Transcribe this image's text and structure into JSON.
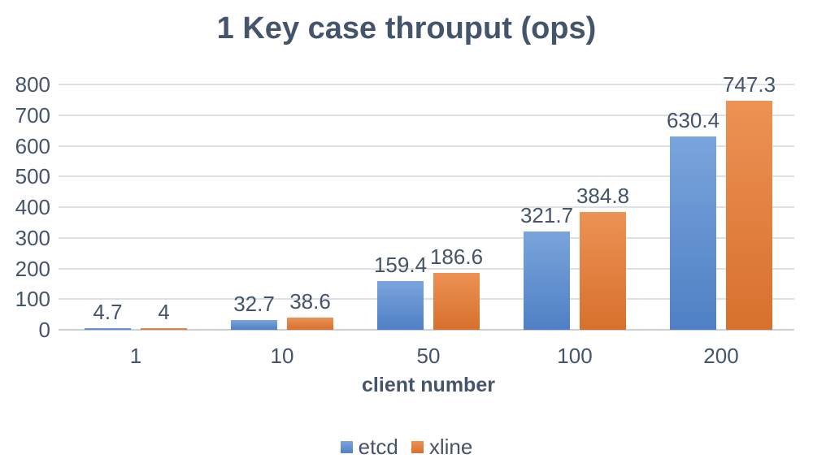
{
  "chart_data": {
    "type": "bar",
    "title": "1 Key case throuput (ops)",
    "xlabel": "client number",
    "ylabel": "",
    "categories": [
      "1",
      "10",
      "50",
      "100",
      "200"
    ],
    "series": [
      {
        "name": "etcd",
        "color": "#5B9BD5",
        "color_top": "#7AA4DB",
        "color_bottom": "#4F80C5",
        "values": [
          4.7,
          32.7,
          159.4,
          321.7,
          630.4
        ]
      },
      {
        "name": "xline",
        "color": "#ED7D31",
        "color_top": "#EC9254",
        "color_bottom": "#D8702D",
        "values": [
          4,
          38.6,
          186.6,
          384.8,
          747.3
        ]
      }
    ],
    "data_labels": [
      [
        "4.7",
        "32.7",
        "159.4",
        "321.7",
        "630.4"
      ],
      [
        "4",
        "38.6",
        "186.6",
        "384.8",
        "747.3"
      ]
    ],
    "ylim": [
      0,
      800
    ],
    "yticks": [
      0,
      100,
      200,
      300,
      400,
      500,
      600,
      700,
      800
    ],
    "grid": true,
    "legend_position": "bottom"
  },
  "colors": {
    "text": "#44546A",
    "gridline": "#DDE1E7",
    "axis_line": "#CBD1D9",
    "background": "#FFFFFF"
  }
}
